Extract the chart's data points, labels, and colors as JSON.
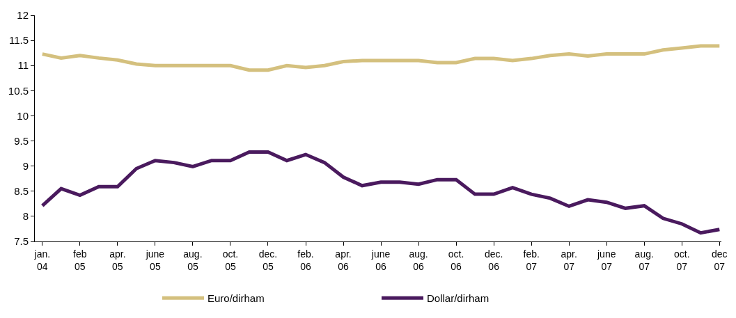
{
  "chart_data": {
    "type": "line",
    "categories": [
      "jan.\n04",
      null,
      "feb\n05",
      null,
      "apr.\n05",
      null,
      "june\n05",
      null,
      "aug.\n05",
      null,
      "oct.\n05",
      null,
      "dec.\n05",
      null,
      "feb.\n06",
      null,
      "apr.\n06",
      null,
      "june\n06",
      null,
      "aug.\n06",
      null,
      "oct.\n06",
      null,
      "dec.\n06",
      null,
      "feb.\n07",
      null,
      "apr.\n07",
      null,
      "june\n07",
      null,
      "aug.\n07",
      null,
      "oct.\n07",
      null,
      "dec\n07"
    ],
    "series": [
      {
        "name": "Euro/dirham",
        "color": "#d4c07e",
        "values": [
          11.23,
          11.15,
          11.2,
          11.15,
          11.11,
          11.03,
          11.0,
          11.0,
          11.0,
          11.0,
          11.0,
          10.91,
          10.91,
          11.0,
          10.96,
          11.0,
          11.08,
          11.1,
          11.1,
          11.1,
          11.1,
          11.06,
          11.06,
          11.14,
          11.14,
          11.1,
          11.14,
          11.2,
          11.23,
          11.19,
          11.23,
          11.23,
          11.23,
          11.31,
          11.35,
          11.39,
          11.39
        ]
      },
      {
        "name": "Dollar/dirham",
        "color": "#4a1a5e",
        "values": [
          8.21,
          8.55,
          8.42,
          8.59,
          8.59,
          8.95,
          9.11,
          9.07,
          8.99,
          9.11,
          9.11,
          9.28,
          9.28,
          9.11,
          9.23,
          9.07,
          8.78,
          8.61,
          8.68,
          8.68,
          8.64,
          8.73,
          8.73,
          8.44,
          8.44,
          8.57,
          8.44,
          8.36,
          8.2,
          8.33,
          8.28,
          8.16,
          8.21,
          7.96,
          7.85,
          7.67,
          7.74
        ]
      }
    ],
    "ylim": [
      7.5,
      12
    ],
    "yticks": [
      7.5,
      8,
      8.5,
      9,
      9.5,
      10,
      10.5,
      11,
      11.5,
      12
    ],
    "legend": "bottom",
    "marker": "none",
    "line_style": "solid"
  }
}
